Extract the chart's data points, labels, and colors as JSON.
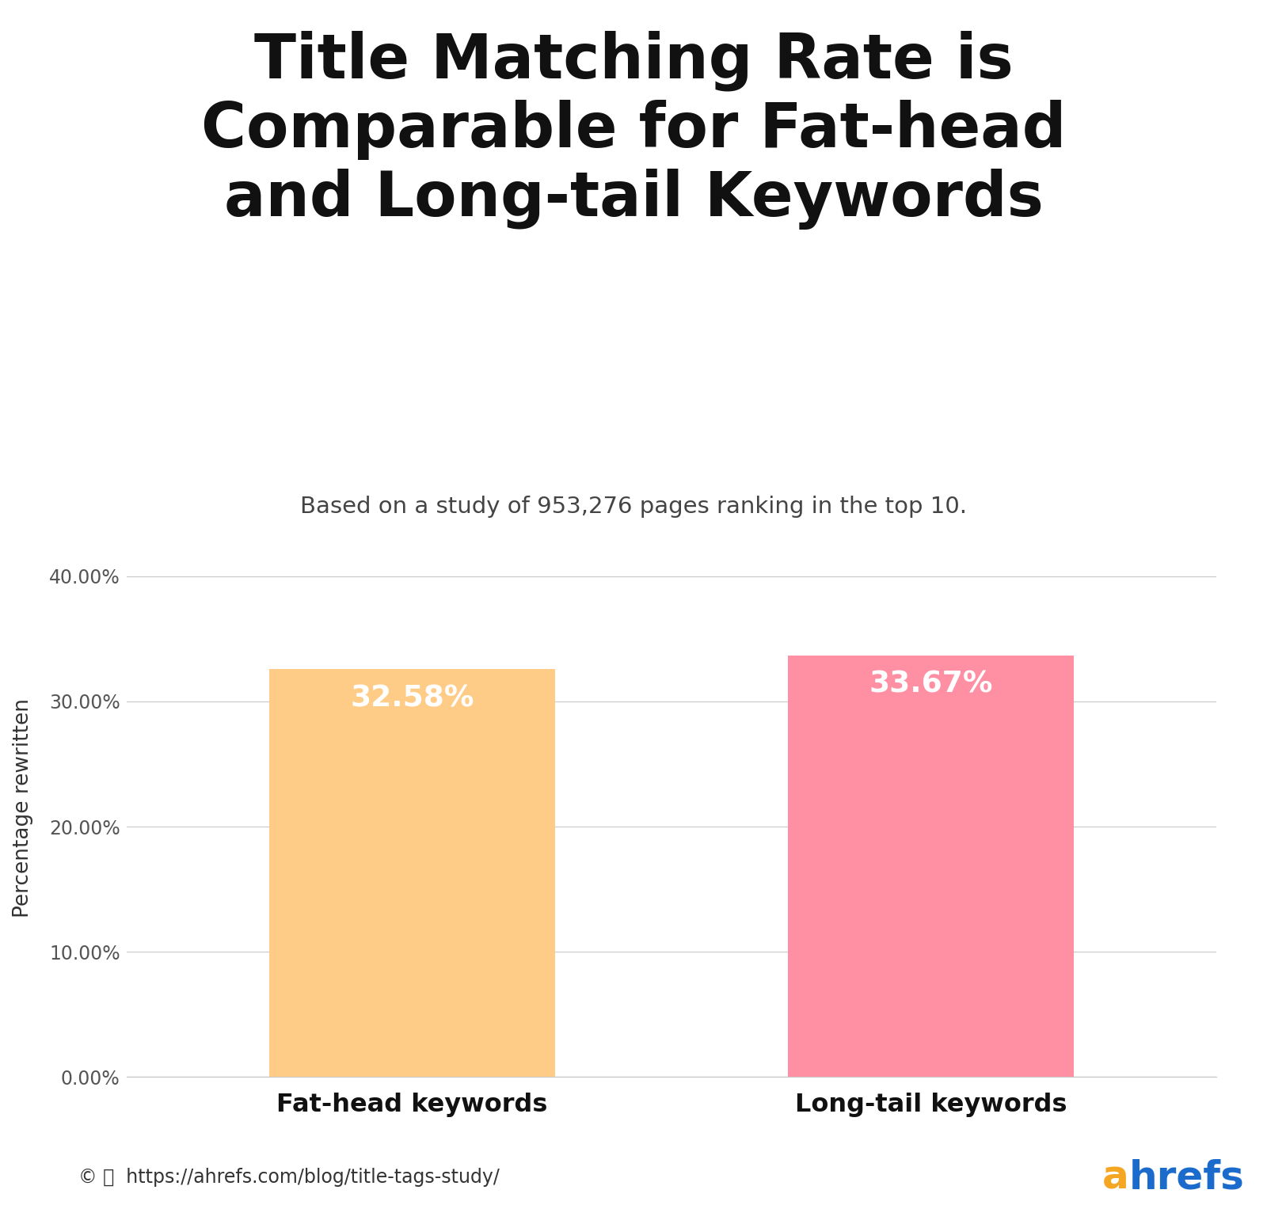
{
  "title_line1": "Title Matching Rate is",
  "title_line2": "Comparable for Fat-head",
  "title_line3": "and Long-tail Keywords",
  "subtitle": "Based on a study of 953,276 pages ranking in the top 10.",
  "categories": [
    "Fat-head keywords",
    "Long-tail keywords"
  ],
  "values": [
    32.58,
    33.67
  ],
  "bar_colors": [
    "#FFCC88",
    "#FF8FA3"
  ],
  "bar_labels": [
    "32.58%",
    "33.67%"
  ],
  "label_color": "#ffffff",
  "ylabel": "Percentage rewritten",
  "yticks": [
    0.0,
    10.0,
    20.0,
    30.0,
    40.0
  ],
  "ytick_labels": [
    "0.00%",
    "10.00%",
    "20.00%",
    "30.00%",
    "40.00%"
  ],
  "ylim": [
    0,
    43
  ],
  "background_color": "#ffffff",
  "grid_color": "#cccccc",
  "title_fontsize": 56,
  "subtitle_fontsize": 21,
  "bar_label_fontsize": 27,
  "ylabel_fontsize": 19,
  "ytick_fontsize": 17,
  "xtick_fontsize": 23,
  "footer_color": "#333333",
  "ahrefs_a_color": "#F5A623",
  "ahrefs_rest_color": "#1a6bcc"
}
